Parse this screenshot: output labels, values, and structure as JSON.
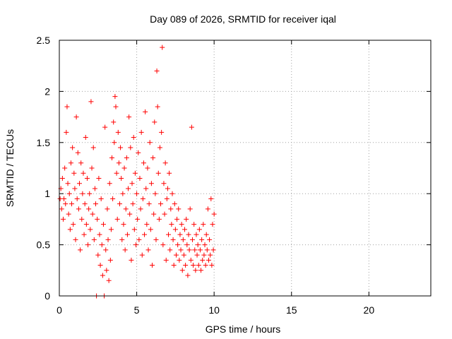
{
  "chart_data": {
    "type": "scatter",
    "title": "Day 089 of 2026, SRMTID for receiver iqal",
    "xlabel": "GPS time / hours",
    "ylabel": "SRMTID / TECUs",
    "xlim": [
      0,
      24
    ],
    "ylim": [
      0,
      2.5
    ],
    "x_ticks": [
      0,
      5,
      10,
      15,
      20
    ],
    "x_tick_labels": [
      "0",
      "5",
      "10",
      "15",
      "20"
    ],
    "y_ticks": [
      0,
      0.5,
      1,
      1.5,
      2,
      2.5
    ],
    "y_tick_labels": [
      "0",
      "0.5",
      "1",
      "1.5",
      "2",
      "2.5"
    ],
    "grid": true,
    "marker": "plus",
    "color": "#ff0000",
    "series": [
      {
        "name": "SRMTID",
        "points": [
          [
            0.05,
            0.95
          ],
          [
            0.1,
            1.05
          ],
          [
            0.15,
            0.85
          ],
          [
            0.2,
            1.15
          ],
          [
            0.25,
            0.75
          ],
          [
            0.3,
            0.95
          ],
          [
            0.35,
            1.25
          ],
          [
            0.4,
            0.9
          ],
          [
            0.45,
            1.6
          ],
          [
            0.5,
            1.85
          ],
          [
            0.55,
            1.1
          ],
          [
            0.6,
            0.8
          ],
          [
            0.65,
            1.0
          ],
          [
            0.7,
            0.65
          ],
          [
            0.75,
            1.3
          ],
          [
            0.8,
            0.9
          ],
          [
            0.85,
            1.45
          ],
          [
            0.9,
            0.7
          ],
          [
            0.95,
            1.2
          ],
          [
            1.0,
            1.05
          ],
          [
            1.05,
            0.55
          ],
          [
            1.1,
            1.75
          ],
          [
            1.15,
            0.95
          ],
          [
            1.2,
            1.4
          ],
          [
            1.25,
            0.85
          ],
          [
            1.3,
            1.1
          ],
          [
            1.35,
            0.45
          ],
          [
            1.4,
            1.3
          ],
          [
            1.45,
            0.75
          ],
          [
            1.5,
            1.0
          ],
          [
            1.55,
            1.2
          ],
          [
            1.6,
            0.6
          ],
          [
            1.65,
            0.9
          ],
          [
            1.7,
            1.55
          ],
          [
            1.75,
            0.7
          ],
          [
            1.8,
            1.15
          ],
          [
            1.85,
            0.5
          ],
          [
            1.9,
            0.85
          ],
          [
            1.95,
            1.0
          ],
          [
            2.0,
            0.65
          ],
          [
            2.05,
            1.9
          ],
          [
            2.1,
            1.25
          ],
          [
            2.15,
            0.8
          ],
          [
            2.2,
            1.45
          ],
          [
            2.25,
            0.55
          ],
          [
            2.3,
            1.05
          ],
          [
            2.35,
            0.9
          ],
          [
            2.4,
            0.0
          ],
          [
            2.45,
            0.75
          ],
          [
            2.5,
            0.4
          ],
          [
            2.55,
            1.15
          ],
          [
            2.6,
            0.6
          ],
          [
            2.65,
            0.3
          ],
          [
            2.7,
            0.95
          ],
          [
            2.75,
            0.5
          ],
          [
            2.8,
            0.2
          ],
          [
            2.85,
            0.7
          ],
          [
            2.9,
            0.0
          ],
          [
            2.95,
            1.65
          ],
          [
            3.0,
            0.45
          ],
          [
            3.05,
            0.25
          ],
          [
            3.1,
            0.85
          ],
          [
            3.15,
            0.55
          ],
          [
            3.2,
            0.15
          ],
          [
            3.25,
            1.1
          ],
          [
            3.3,
            0.35
          ],
          [
            3.35,
            0.65
          ],
          [
            3.4,
            1.35
          ],
          [
            3.45,
            0.95
          ],
          [
            3.5,
            1.7
          ],
          [
            3.55,
            1.5
          ],
          [
            3.6,
            1.95
          ],
          [
            3.65,
            1.85
          ],
          [
            3.7,
            1.2
          ],
          [
            3.75,
            0.75
          ],
          [
            3.8,
            1.6
          ],
          [
            3.85,
            1.3
          ],
          [
            3.9,
            0.9
          ],
          [
            3.95,
            1.45
          ],
          [
            4.0,
            1.15
          ],
          [
            4.05,
            0.55
          ],
          [
            4.1,
            1.0
          ],
          [
            4.15,
            0.7
          ],
          [
            4.2,
            1.25
          ],
          [
            4.25,
            0.45
          ],
          [
            4.3,
            0.85
          ],
          [
            4.35,
            1.35
          ],
          [
            4.4,
            0.6
          ],
          [
            4.45,
            1.05
          ],
          [
            4.5,
            1.75
          ],
          [
            4.55,
            0.8
          ],
          [
            4.6,
            1.45
          ],
          [
            4.65,
            0.35
          ],
          [
            4.7,
            1.1
          ],
          [
            4.75,
            0.9
          ],
          [
            4.8,
            1.55
          ],
          [
            4.85,
            0.65
          ],
          [
            4.9,
            1.2
          ],
          [
            4.95,
            0.5
          ],
          [
            5.0,
            1.0
          ],
          [
            5.05,
            0.75
          ],
          [
            5.1,
            1.4
          ],
          [
            5.15,
            0.55
          ],
          [
            5.2,
            1.15
          ],
          [
            5.25,
            0.85
          ],
          [
            5.3,
            1.6
          ],
          [
            5.35,
            0.4
          ],
          [
            5.4,
            0.95
          ],
          [
            5.45,
            1.3
          ],
          [
            5.5,
            0.6
          ],
          [
            5.55,
            1.8
          ],
          [
            5.6,
            1.05
          ],
          [
            5.65,
            0.7
          ],
          [
            5.7,
            1.25
          ],
          [
            5.75,
            0.45
          ],
          [
            5.8,
            0.9
          ],
          [
            5.85,
            1.5
          ],
          [
            5.9,
            0.65
          ],
          [
            5.95,
            1.1
          ],
          [
            6.0,
            0.3
          ],
          [
            6.05,
            1.35
          ],
          [
            6.1,
            0.8
          ],
          [
            6.15,
            1.7
          ],
          [
            6.2,
            1.0
          ],
          [
            6.25,
            0.55
          ],
          [
            6.3,
            2.2
          ],
          [
            6.35,
            1.85
          ],
          [
            6.4,
            1.2
          ],
          [
            6.45,
            0.75
          ],
          [
            6.5,
            1.45
          ],
          [
            6.55,
            0.9
          ],
          [
            6.6,
            1.6
          ],
          [
            6.65,
            2.43
          ],
          [
            6.7,
            0.5
          ],
          [
            6.75,
            1.1
          ],
          [
            6.8,
            0.8
          ],
          [
            6.85,
            1.3
          ],
          [
            6.9,
            0.35
          ],
          [
            6.95,
            0.95
          ],
          [
            7.0,
            1.05
          ],
          [
            7.05,
            0.6
          ],
          [
            7.1,
            1.2
          ],
          [
            7.15,
            0.45
          ],
          [
            7.2,
            0.85
          ],
          [
            7.25,
            0.7
          ],
          [
            7.3,
            1.0
          ],
          [
            7.35,
            0.55
          ],
          [
            7.4,
            0.3
          ],
          [
            7.45,
            0.9
          ],
          [
            7.5,
            0.65
          ],
          [
            7.55,
            0.4
          ],
          [
            7.6,
            0.75
          ],
          [
            7.65,
            0.5
          ],
          [
            7.7,
            0.85
          ],
          [
            7.75,
            0.35
          ],
          [
            7.8,
            0.6
          ],
          [
            7.85,
            0.45
          ],
          [
            7.9,
            0.7
          ],
          [
            7.95,
            0.25
          ],
          [
            8.0,
            0.55
          ],
          [
            8.05,
            0.4
          ],
          [
            8.1,
            0.65
          ],
          [
            8.15,
            0.3
          ],
          [
            8.2,
            0.75
          ],
          [
            8.25,
            0.5
          ],
          [
            8.3,
            0.2
          ],
          [
            8.35,
            0.6
          ],
          [
            8.4,
            0.45
          ],
          [
            8.45,
            0.85
          ],
          [
            8.5,
            0.35
          ],
          [
            8.55,
            1.65
          ],
          [
            8.6,
            0.55
          ],
          [
            8.65,
            0.3
          ],
          [
            8.7,
            0.7
          ],
          [
            8.75,
            0.45
          ],
          [
            8.8,
            0.25
          ],
          [
            8.85,
            0.6
          ],
          [
            8.9,
            0.4
          ],
          [
            8.95,
            0.5
          ],
          [
            9.0,
            0.3
          ],
          [
            9.05,
            0.65
          ],
          [
            9.1,
            0.45
          ],
          [
            9.15,
            0.25
          ],
          [
            9.2,
            0.55
          ],
          [
            9.25,
            0.35
          ],
          [
            9.3,
            0.7
          ],
          [
            9.35,
            0.4
          ],
          [
            9.4,
            0.5
          ],
          [
            9.45,
            0.3
          ],
          [
            9.5,
            0.6
          ],
          [
            9.55,
            0.45
          ],
          [
            9.6,
            0.85
          ],
          [
            9.65,
            0.35
          ],
          [
            9.7,
            0.55
          ],
          [
            9.75,
            0.4
          ],
          [
            9.8,
            0.95
          ],
          [
            9.85,
            0.3
          ],
          [
            9.9,
            0.7
          ],
          [
            9.95,
            0.45
          ],
          [
            10.0,
            0.8
          ]
        ]
      }
    ]
  }
}
